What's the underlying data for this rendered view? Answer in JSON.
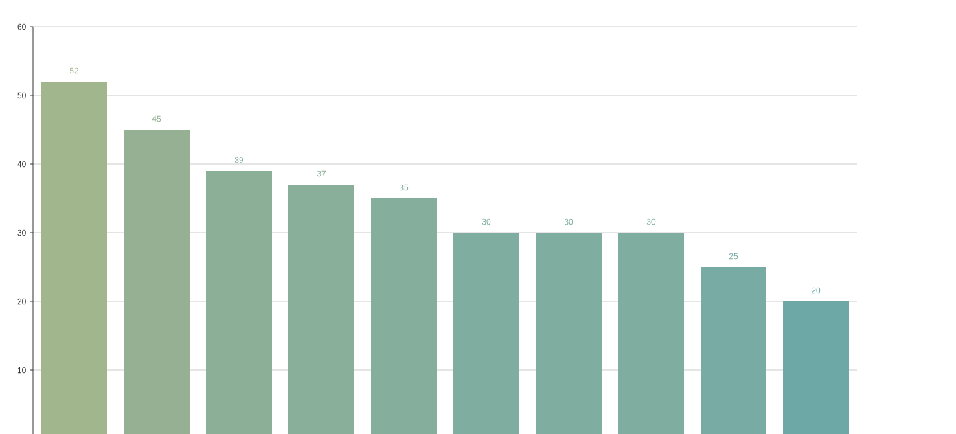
{
  "chart_data": {
    "type": "bar",
    "categories": [
      null,
      null,
      null,
      null,
      null,
      null,
      null,
      null,
      null,
      null
    ],
    "values": [
      52,
      45,
      39,
      37,
      35,
      30,
      30,
      30,
      25,
      20
    ],
    "colors": [
      "#a1b68c",
      "#95b093",
      "#8caf98",
      "#89af9b",
      "#86ae9d",
      "#7fad9f",
      "#7fad9f",
      "#7fad9f",
      "#77aba3",
      "#6da8a7"
    ],
    "ylim": [
      0.7,
      60
    ],
    "yticks": [
      10,
      20,
      30,
      40,
      50,
      60
    ],
    "grid": "y",
    "tick_labels": "y",
    "data_labels": true
  }
}
